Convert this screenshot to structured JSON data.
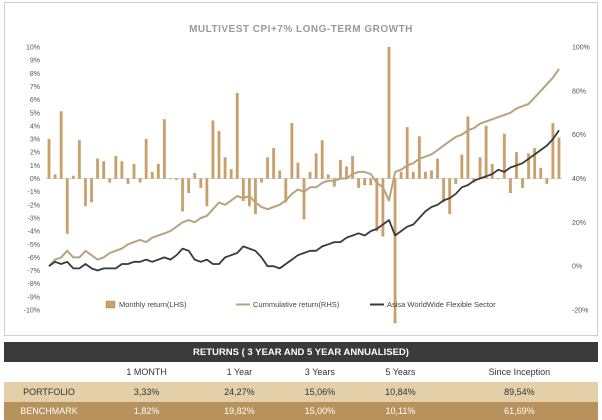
{
  "chart_title": "MULTIVEST CPI+7% LONG-TERM GROWTH",
  "colors": {
    "monthly_bar": "#c8a06a",
    "monthly_bar_edge": "#b98b4e",
    "cumulative_line": "#b9a27e",
    "sector_line": "#3a3a3a",
    "table_title_bg": "#3a3a3a",
    "portfolio_row_bg": "#e3cfa8",
    "benchmark_row_bg": "#b8925d"
  },
  "chart_data": {
    "type": "bar+line",
    "left_axis": {
      "min": -10,
      "max": 10,
      "step": 1,
      "tick_labels": [
        "10%",
        "9%",
        "8%",
        "7%",
        "6%",
        "5%",
        "4%",
        "3%",
        "2%",
        "1%",
        "0%",
        "-1%",
        "-2%",
        "-3%",
        "-4%",
        "-5%",
        "-6%",
        "-7%",
        "-8%",
        "-9%",
        "-10%"
      ]
    },
    "right_axis": {
      "min": -20,
      "max": 100,
      "step": 20,
      "tick_labels": [
        "100%",
        "80%",
        "60%",
        "40%",
        "20%",
        "0%",
        "-20%"
      ]
    },
    "legend_position": "bottom-inside",
    "series": [
      {
        "name": "Monthly return(LHS)",
        "kind": "bar",
        "axis": "left",
        "values": [
          3.0,
          0.3,
          5.1,
          -4.2,
          0.2,
          2.9,
          -2.1,
          -1.8,
          1.5,
          1.3,
          -0.3,
          1.7,
          1.3,
          -0.4,
          1.1,
          -0.3,
          3.0,
          0.5,
          1.1,
          4.5,
          0.0,
          -0.1,
          -2.5,
          -1.1,
          0.4,
          -0.7,
          -2.1,
          4.4,
          3.6,
          1.6,
          0.7,
          6.5,
          -1.7,
          -2.1,
          -2.7,
          -0.3,
          1.6,
          2.3,
          0.6,
          -1.8,
          4.2,
          1.2,
          -3.1,
          0.5,
          1.9,
          2.9,
          0.3,
          -0.6,
          1.4,
          0.9,
          1.7,
          -0.7,
          -0.5,
          -0.5,
          -4.0,
          -4.4,
          10.0,
          -11.0,
          0.5,
          3.9,
          0.5,
          3.2,
          0.5,
          0.6,
          1.5,
          -1.8,
          -2.7,
          -0.4,
          1.8,
          4.7,
          -0.3,
          1.6,
          4.0,
          1.1,
          0.0,
          3.4,
          -1.1,
          2.0,
          -0.7,
          1.9,
          2.3,
          0.8,
          -0.4,
          4.2,
          3.1
        ]
      },
      {
        "name": "Cummulative return(RHS)",
        "kind": "line",
        "axis": "right",
        "values": [
          0,
          3,
          4,
          7,
          4,
          4,
          7,
          5,
          3,
          4,
          6,
          7,
          8,
          10,
          11,
          12,
          11,
          13,
          14,
          15,
          16,
          18,
          20,
          21,
          20,
          22,
          23,
          26,
          29,
          28,
          30,
          32,
          31,
          32,
          29,
          27,
          26,
          27,
          28,
          30,
          33,
          35,
          34,
          36,
          36,
          38,
          39,
          39,
          40,
          40,
          42,
          43,
          43,
          42,
          38,
          36,
          30,
          43,
          44,
          46,
          47,
          49,
          50,
          51,
          53,
          55,
          57,
          59,
          60,
          62,
          63,
          65,
          66,
          67,
          68,
          69,
          70,
          72,
          73,
          74,
          77,
          80,
          83,
          86,
          90
        ]
      },
      {
        "name": "Asisa WorldWide Flexible Sector",
        "kind": "line",
        "axis": "right",
        "values": [
          0,
          2,
          1,
          2,
          -1,
          -1,
          1,
          -1,
          -2,
          -1,
          -1,
          -1,
          1,
          1,
          2,
          2,
          3,
          2,
          3,
          4,
          3,
          5,
          8,
          7,
          3,
          2,
          3,
          1,
          1,
          4,
          5,
          6,
          9,
          8,
          7,
          4,
          0,
          0,
          -1,
          1,
          3,
          5,
          6,
          7,
          7,
          9,
          10,
          11,
          11,
          13,
          14,
          15,
          14,
          16,
          17,
          19,
          21,
          14,
          16,
          18,
          19,
          22,
          25,
          27,
          28,
          30,
          31,
          33,
          36,
          37,
          39,
          40,
          41,
          42,
          44,
          43,
          45,
          46,
          47,
          49,
          51,
          53,
          55,
          58,
          62
        ]
      }
    ],
    "returns_table": {
      "title": "RETURNS ( 3 YEAR AND 5 YEAR ANNUALISED)",
      "columns": [
        "1 MONTH",
        "1 Year",
        "3 Years",
        "5 Years",
        "Since Inception"
      ],
      "rows": [
        {
          "label": "PORTFOLIO",
          "values": [
            "3,33%",
            "24,27%",
            "15,06%",
            "10,84%",
            "89,54%"
          ]
        },
        {
          "label": "BENCHMARK",
          "values": [
            "1,82%",
            "19,82%",
            "15,00%",
            "10,11%",
            "61,69%"
          ]
        }
      ]
    }
  }
}
